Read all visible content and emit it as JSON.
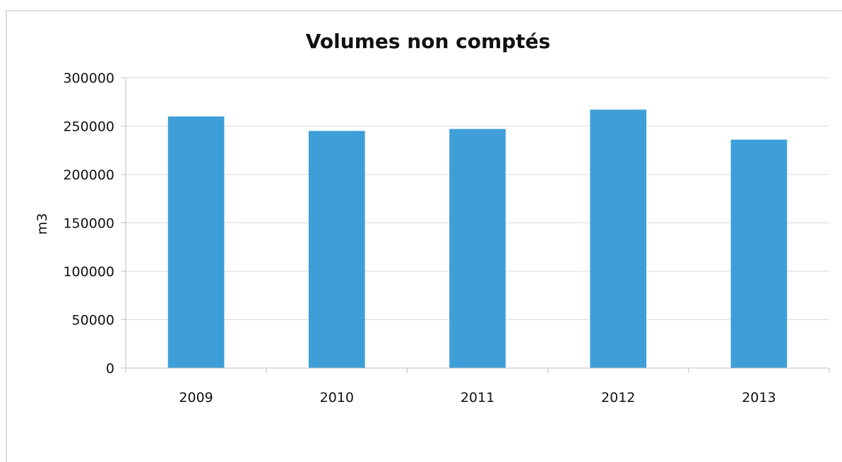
{
  "chart_data": {
    "type": "bar",
    "title": "Volumes non comptés",
    "xlabel": "",
    "ylabel": "m3",
    "categories": [
      "2009",
      "2010",
      "2011",
      "2012",
      "2013"
    ],
    "series": [
      {
        "values": [
          260000,
          245000,
          247000,
          267000,
          236000
        ]
      }
    ],
    "ylim": [
      0,
      300000
    ],
    "yticks": [
      "0",
      "50000",
      "100000",
      "150000",
      "200000",
      "250000",
      "300000"
    ],
    "grid": true,
    "legend": "none",
    "colors": {
      "bar": "#3e9fd8",
      "grid": "#d9d9d9",
      "axis": "#bfbfbf"
    }
  }
}
